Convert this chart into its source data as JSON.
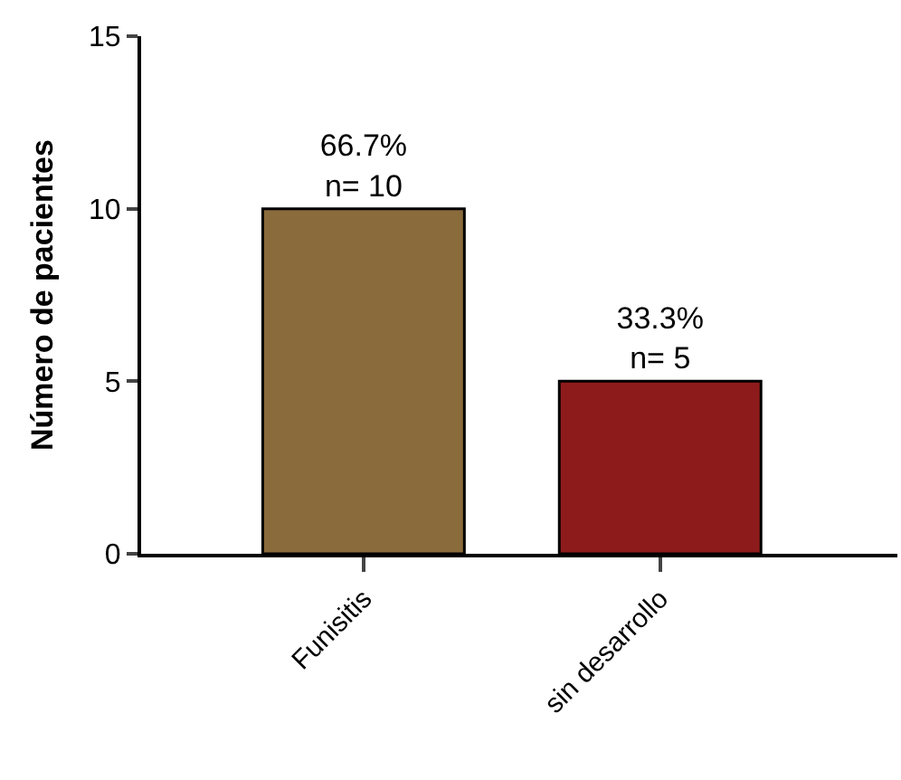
{
  "chart_data": {
    "type": "bar",
    "ylabel": "Número de pacientes",
    "categories": [
      "Funisitis",
      "sin desarrollo"
    ],
    "values": [
      10,
      5
    ],
    "colors": [
      "#8a6b3c",
      "#8e1b1b"
    ],
    "value_labels": [
      "66.7%\nn= 10",
      "33.3%\nn= 5"
    ],
    "ylim": [
      0,
      15
    ],
    "yticks": [
      0,
      5,
      10,
      15
    ],
    "legend": false
  }
}
